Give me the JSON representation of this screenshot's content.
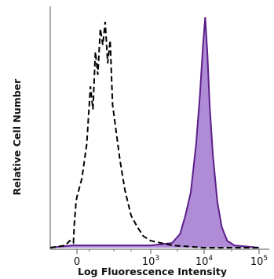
{
  "chart_data": {
    "type": "area",
    "title": "",
    "xlabel": "Log Fluorescence Intensity",
    "ylabel": "Relative Cell Number",
    "x_scale": "biexponential",
    "xlim": [
      -20,
      100000
    ],
    "ylim": [
      0,
      100
    ],
    "x_ticks": [
      {
        "base": "0",
        "exp": ""
      },
      {
        "base": "10",
        "exp": "3"
      },
      {
        "base": "10",
        "exp": "4"
      },
      {
        "base": "10",
        "exp": "5"
      }
    ],
    "grid": false,
    "legend": "none",
    "series": [
      {
        "style": "dashed-outline",
        "color": "#000000",
        "peak_x": 150,
        "points": [
          [
            -3.0,
            0
          ],
          [
            -1.3,
            1
          ],
          [
            -0.8,
            3
          ],
          [
            -0.4,
            2
          ],
          [
            -0.3,
            10
          ],
          [
            -0.1,
            20
          ],
          [
            0,
            22
          ],
          [
            0.2,
            30
          ],
          [
            0.4,
            45
          ],
          [
            0.55,
            70
          ],
          [
            0.65,
            60
          ],
          [
            0.75,
            85
          ],
          [
            0.85,
            75
          ],
          [
            0.95,
            95
          ],
          [
            1.05,
            88
          ],
          [
            1.15,
            98
          ],
          [
            1.25,
            80
          ],
          [
            1.35,
            90
          ],
          [
            1.45,
            62
          ],
          [
            1.6,
            50
          ],
          [
            1.75,
            38
          ],
          [
            1.95,
            25
          ],
          [
            2.2,
            14
          ],
          [
            2.45,
            9
          ],
          [
            2.7,
            5
          ],
          [
            3.0,
            3
          ],
          [
            3.4,
            1
          ],
          [
            4.0,
            0
          ],
          [
            4.5,
            0
          ],
          [
            5.0,
            0
          ]
        ]
      },
      {
        "style": "filled",
        "color": "#5b1f8a",
        "fill": "#b08cd6",
        "peak_x": 10000,
        "points": [
          [
            -3.0,
            0
          ],
          [
            -0.5,
            1
          ],
          [
            0.5,
            1
          ],
          [
            1.5,
            1
          ],
          [
            2.5,
            1
          ],
          [
            3.0,
            1
          ],
          [
            3.4,
            2
          ],
          [
            3.55,
            6
          ],
          [
            3.65,
            14
          ],
          [
            3.75,
            24
          ],
          [
            3.85,
            45
          ],
          [
            3.92,
            66
          ],
          [
            3.98,
            88
          ],
          [
            4.02,
            100
          ],
          [
            4.06,
            84
          ],
          [
            4.1,
            62
          ],
          [
            4.16,
            40
          ],
          [
            4.24,
            20
          ],
          [
            4.32,
            9
          ],
          [
            4.42,
            3
          ],
          [
            4.55,
            1
          ],
          [
            5.0,
            0
          ]
        ]
      }
    ]
  }
}
